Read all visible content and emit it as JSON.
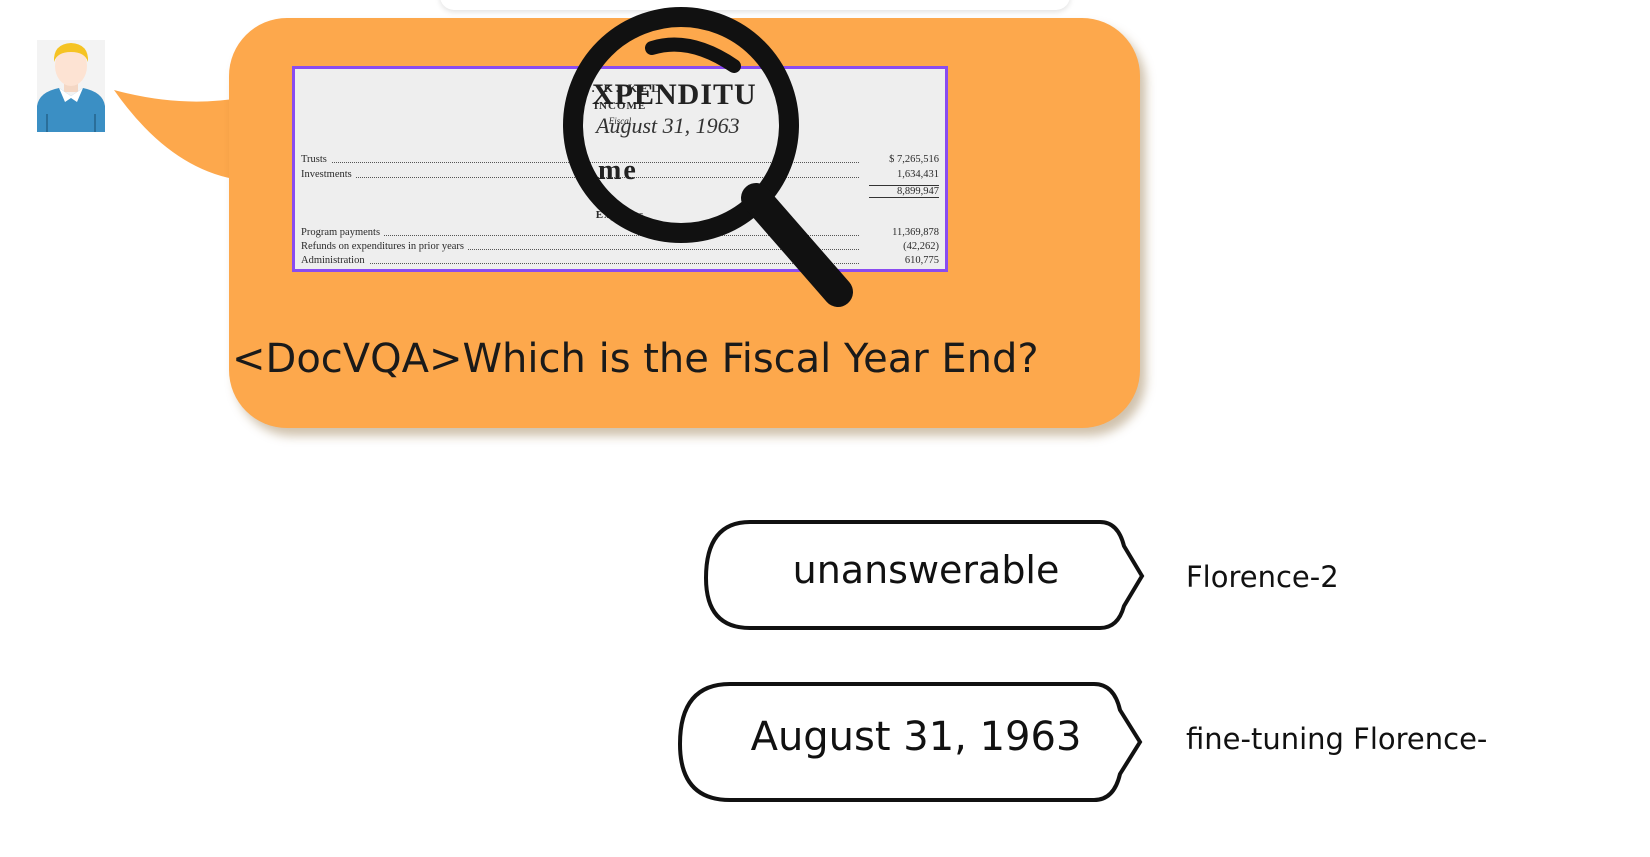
{
  "input": {
    "document": {
      "header": [
        "W. K. KEL",
        "INCOME",
        "Fiscal"
      ],
      "zoom": [
        "XPENDITU",
        "August 31, 1963",
        "me"
      ],
      "income_rows": [
        {
          "label": "Trusts",
          "value": "$ 7,265,516"
        },
        {
          "label": "Investments",
          "value": "1,634,431"
        }
      ],
      "income_total": "8,899,947",
      "section": "Expe      res",
      "expense_rows": [
        {
          "label": "Program payments",
          "value": "11,369,878"
        },
        {
          "label": "Refunds on expenditures in prior years",
          "value": "(42,262)"
        },
        {
          "label": "Administration",
          "value": "610,775"
        }
      ]
    },
    "prompt": "<DocVQA>Which is the Fiscal Year End?"
  },
  "outputs": [
    {
      "answer": "unanswerable",
      "model": "Florence-2"
    },
    {
      "answer": "August 31, 1963",
      "model": "fine-tuning Florence-"
    }
  ],
  "colors": {
    "bubble": "#fda84c",
    "doc_border": "#8a4cf0",
    "magnifier": "#111111",
    "avatar_shirt": "#3b8fc4",
    "avatar_hair": "#f5c323"
  }
}
